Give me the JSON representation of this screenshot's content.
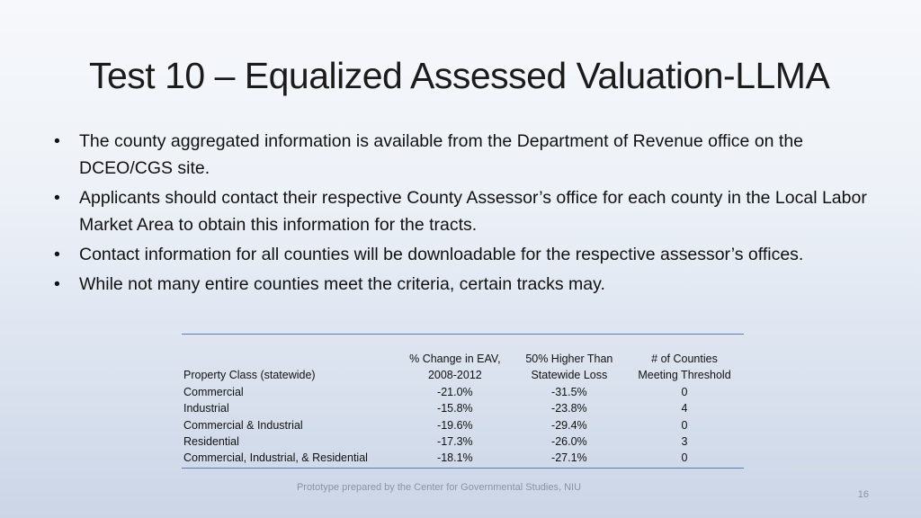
{
  "title": "Test 10 – Equalized Assessed Valuation-LLMA",
  "bullets": [
    "The county aggregated information is available from the Department of Revenue office on the DCEO/CGS site.",
    "Applicants should contact their respective County Assessor’s office for each county in the Local Labor Market Area to obtain this information for the tracts.",
    "Contact information for all counties will be downloadable for the respective assessor’s offices.",
    "While not many entire counties meet the criteria, certain tracks may."
  ],
  "table": {
    "headers": {
      "col1": "Property Class (statewide)",
      "col2_line1": "% Change in EAV,",
      "col2_line2": "2008-2012",
      "col3_line1": "50% Higher Than",
      "col3_line2": "Statewide Loss",
      "col4_line1": "# of Counties",
      "col4_line2": "Meeting Threshold"
    },
    "rows": [
      {
        "property_class": "Commercial",
        "pct_change": "-21.0%",
        "higher_than_loss": "-31.5%",
        "counties": "0"
      },
      {
        "property_class": "Industrial",
        "pct_change": "-15.8%",
        "higher_than_loss": "-23.8%",
        "counties": "4"
      },
      {
        "property_class": "Commercial & Industrial",
        "pct_change": "-19.6%",
        "higher_than_loss": "-29.4%",
        "counties": "0"
      },
      {
        "property_class": "Residential",
        "pct_change": "-17.3%",
        "higher_than_loss": "-26.0%",
        "counties": "3"
      },
      {
        "property_class": "Commercial, Industrial, & Residential",
        "pct_change": "-18.1%",
        "higher_than_loss": "-27.1%",
        "counties": "0"
      }
    ]
  },
  "footer": "Prototype prepared by the Center for Governmental Studies, NIU",
  "page_number": "16",
  "colors": {
    "table_rule": "#5b7db5",
    "background_top": "#f6f8fb",
    "background_bottom": "#cbd5e6"
  }
}
